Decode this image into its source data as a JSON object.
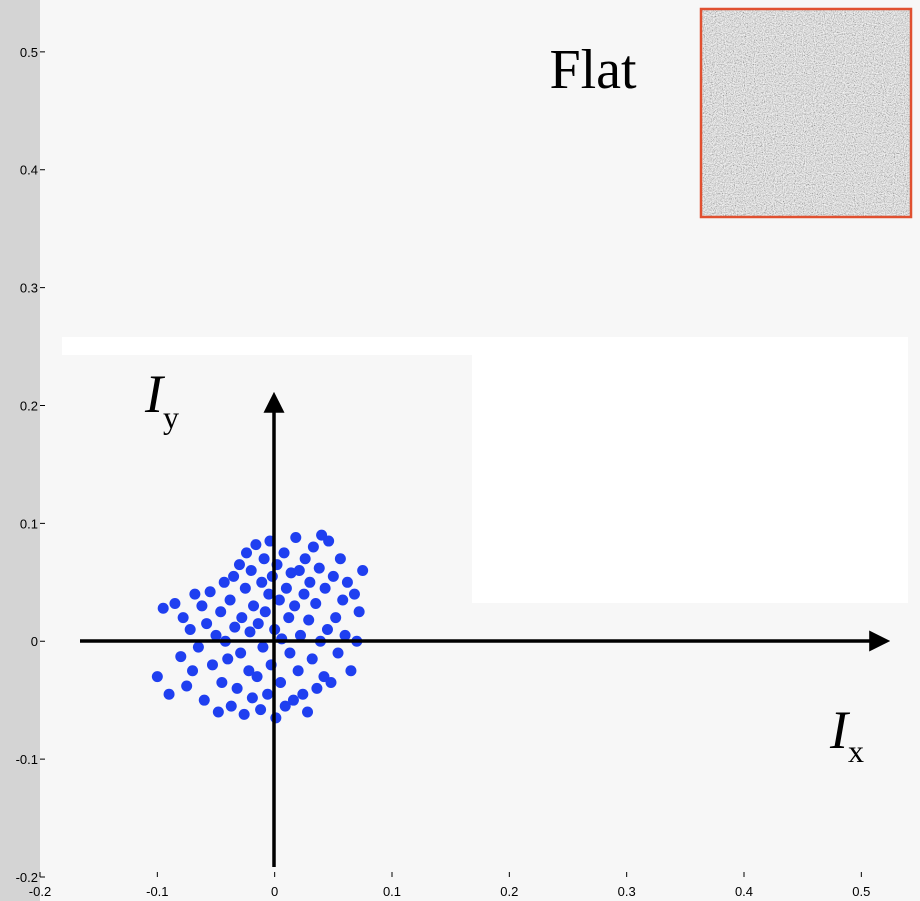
{
  "chart_data": {
    "type": "scatter",
    "title": "Flat",
    "x_label": {
      "symbol": "I",
      "subscript": "x"
    },
    "y_label": {
      "symbol": "I",
      "subscript": "y"
    },
    "color": "#1f3ff0",
    "xlim": [
      -0.2,
      0.55
    ],
    "ylim": [
      -0.2,
      0.544
    ],
    "xticks": [
      -0.2,
      -0.1,
      0,
      0.1,
      0.2,
      0.3,
      0.4,
      0.5
    ],
    "yticks": [
      -0.2,
      -0.1,
      0,
      0.1,
      0.2,
      0.3,
      0.4,
      0.5
    ],
    "x": [
      -0.1,
      -0.095,
      -0.09,
      -0.085,
      -0.08,
      -0.078,
      -0.075,
      -0.072,
      -0.07,
      -0.068,
      -0.065,
      -0.062,
      -0.06,
      -0.058,
      -0.055,
      -0.053,
      -0.05,
      -0.048,
      -0.046,
      -0.045,
      -0.043,
      -0.042,
      -0.04,
      -0.038,
      -0.037,
      -0.035,
      -0.034,
      -0.032,
      -0.03,
      -0.029,
      -0.028,
      -0.026,
      -0.025,
      -0.024,
      -0.022,
      -0.021,
      -0.02,
      -0.019,
      -0.018,
      -0.016,
      -0.015,
      -0.014,
      -0.012,
      -0.011,
      -0.01,
      -0.009,
      -0.008,
      -0.006,
      -0.005,
      -0.004,
      -0.003,
      -0.002,
      0,
      0.001,
      0.002,
      0.004,
      0.005,
      0.006,
      0.008,
      0.009,
      0.01,
      0.012,
      0.013,
      0.014,
      0.016,
      0.017,
      0.018,
      0.02,
      0.021,
      0.022,
      0.024,
      0.025,
      0.026,
      0.028,
      0.029,
      0.03,
      0.032,
      0.033,
      0.035,
      0.036,
      0.038,
      0.039,
      0.04,
      0.042,
      0.043,
      0.045,
      0.046,
      0.048,
      0.05,
      0.052,
      0.054,
      0.056,
      0.058,
      0.06,
      0.062,
      0.065,
      0.068,
      0.072,
      0.075,
      0.07
    ],
    "y": [
      -0.03,
      0.028,
      -0.045,
      0.032,
      -0.013,
      0.02,
      -0.038,
      0.01,
      -0.025,
      0.04,
      -0.005,
      0.03,
      -0.05,
      0.015,
      0.042,
      -0.02,
      0.005,
      -0.06,
      0.025,
      -0.035,
      0.05,
      0.0,
      -0.015,
      0.035,
      -0.055,
      0.055,
      0.012,
      -0.04,
      0.065,
      -0.01,
      0.02,
      -0.062,
      0.045,
      0.075,
      -0.025,
      0.008,
      0.06,
      -0.048,
      0.03,
      0.082,
      -0.03,
      0.015,
      -0.058,
      0.05,
      -0.005,
      0.07,
      0.025,
      -0.045,
      0.04,
      0.085,
      -0.02,
      0.055,
      0.01,
      -0.065,
      0.065,
      0.035,
      -0.035,
      0.002,
      0.075,
      -0.055,
      0.045,
      0.02,
      -0.01,
      0.058,
      -0.05,
      0.03,
      0.088,
      -0.025,
      0.06,
      0.005,
      -0.045,
      0.04,
      0.07,
      -0.06,
      0.018,
      0.05,
      -0.015,
      0.08,
      0.032,
      -0.04,
      0.062,
      0.0,
      0.09,
      -0.03,
      0.045,
      0.01,
      0.085,
      -0.035,
      0.055,
      0.02,
      -0.01,
      0.07,
      0.035,
      0.005,
      0.05,
      -0.025,
      0.04,
      0.025,
      0.06,
      0.0
    ]
  }
}
